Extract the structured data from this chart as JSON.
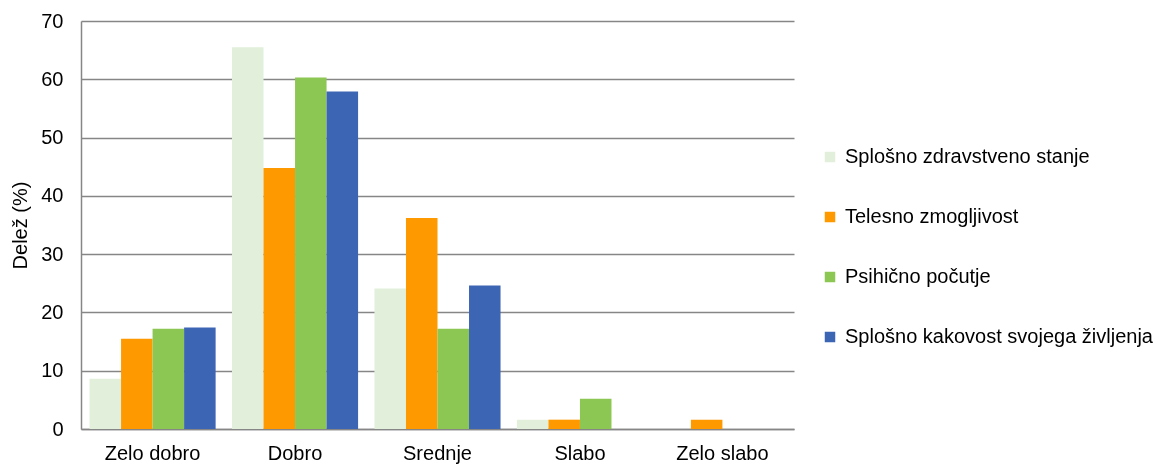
{
  "chart_data": {
    "type": "bar",
    "ylabel": "Delež (%)",
    "categories": [
      "Zelo dobro",
      "Dobro",
      "Srednje",
      "Slabo",
      "Zelo slabo"
    ],
    "series": [
      {
        "name": "Splošno zdravstveno stanje",
        "color": "#e2efda",
        "values": [
          8.6,
          65.5,
          24.1,
          1.6,
          0
        ]
      },
      {
        "name": "Telesno zmogljivost",
        "color": "#ff9900",
        "values": [
          15.5,
          44.8,
          36.2,
          1.6,
          1.6
        ]
      },
      {
        "name": "Psihično počutje",
        "color": "#8cc653",
        "values": [
          17.2,
          60.3,
          17.2,
          5.2,
          0
        ]
      },
      {
        "name": "Splošno kakovost svojega življenja",
        "color": "#3c65b4",
        "values": [
          17.4,
          57.9,
          24.6,
          0,
          0
        ]
      }
    ],
    "ylim": [
      0,
      70
    ],
    "yticks": [
      0,
      10,
      20,
      30,
      40,
      50,
      60,
      70
    ],
    "grid": "y",
    "legend": "right"
  }
}
